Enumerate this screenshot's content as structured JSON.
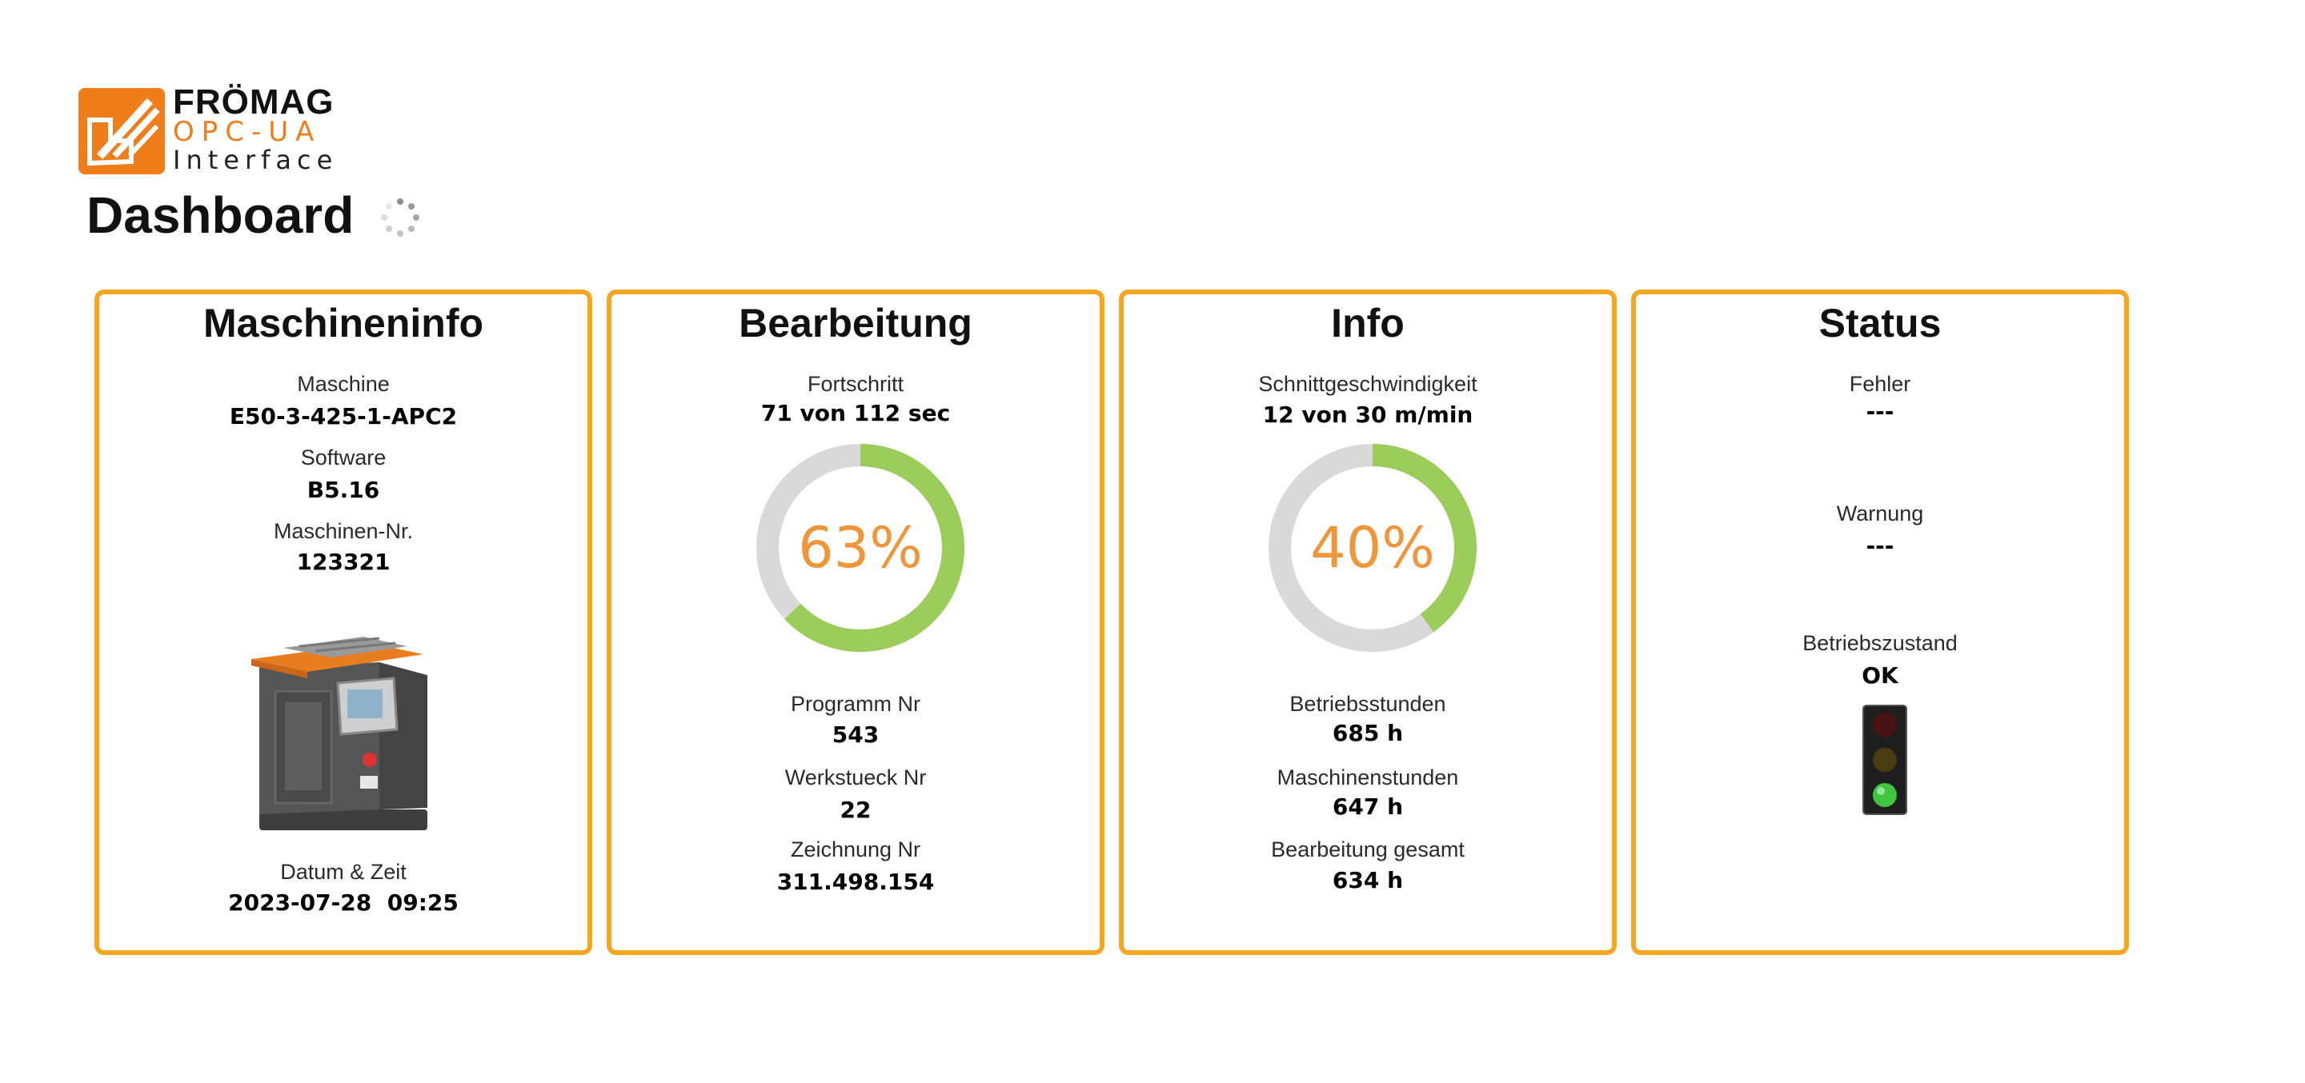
{
  "logo": {
    "brand": "FRÖMAG",
    "line1": "OPC-UA",
    "line2": "Interface",
    "brand_color": "#ef7d1a"
  },
  "header": {
    "title": "Dashboard",
    "loading_icon": "loading-spinner-icon"
  },
  "cards": {
    "maschineninfo": {
      "title": "Maschineninfo",
      "maschine_label": "Maschine",
      "maschine_value": "E50-3-425-1-APC2",
      "software_label": "Software",
      "software_value": "B5.16",
      "nr_label": "Maschinen-Nr.",
      "nr_value": "123321",
      "image_icon": "machine-image",
      "datum_label": "Datum & Zeit",
      "datum_value": "2023-07-28  09:25"
    },
    "bearbeitung": {
      "title": "Bearbeitung",
      "fortschritt_label": "Fortschritt",
      "fortschritt_value": "71 von 112 sec",
      "progress_percent": 63,
      "progress_text": "63%",
      "programm_label": "Programm Nr",
      "programm_value": "543",
      "werkstueck_label": "Werkstueck Nr",
      "werkstueck_value": "22",
      "zeichnung_label": "Zeichnung Nr",
      "zeichnung_value": "311.498.154"
    },
    "info": {
      "title": "Info",
      "speed_label": "Schnittgeschwindigkeit",
      "speed_value": "12 von 30 m/min",
      "speed_percent": 40,
      "speed_text": "40%",
      "betrieb_label": "Betriebsstunden",
      "betrieb_value": "685 h",
      "maschinen_label": "Maschinenstunden",
      "maschinen_value": "647 h",
      "gesamt_label": "Bearbeitung gesamt",
      "gesamt_value": "634 h"
    },
    "status": {
      "title": "Status",
      "fehler_label": "Fehler",
      "fehler_value": "---",
      "warnung_label": "Warnung",
      "warnung_value": "---",
      "zustand_label": "Betriebszustand",
      "zustand_value": "OK",
      "traffic_light_icon": "traffic-light-icon",
      "active_light": "green"
    }
  },
  "colors": {
    "card_border": "#f5a623",
    "donut_fill": "#9ccc5a",
    "donut_track": "#d9d9d9",
    "donut_text": "#f0963a"
  }
}
